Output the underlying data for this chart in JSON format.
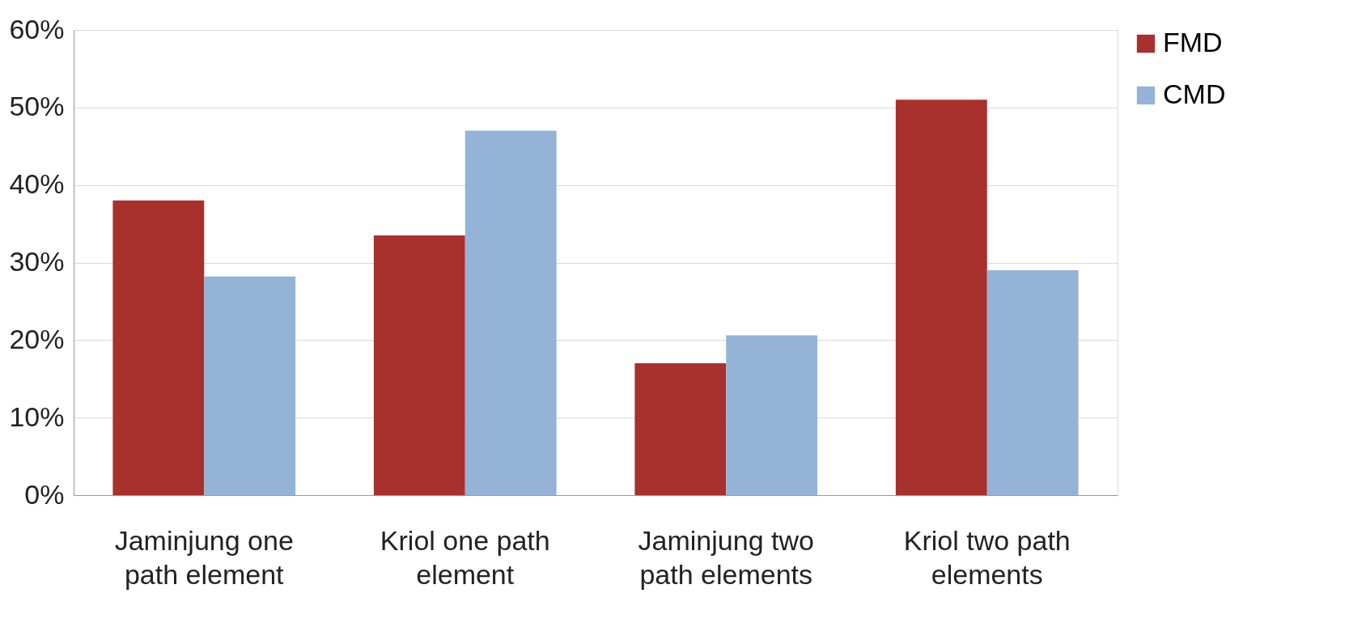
{
  "chart_data": {
    "type": "bar",
    "categories": [
      "Jaminjung one path element",
      "Kriol one path element",
      "Jaminjung two path elements",
      "Kriol two path elements"
    ],
    "series": [
      {
        "name": "FMD",
        "color": "#a8302d",
        "values": [
          38,
          33.5,
          17,
          51
        ]
      },
      {
        "name": "CMD",
        "color": "#95b3d7",
        "values": [
          28.2,
          47,
          20.6,
          29
        ]
      }
    ],
    "ylim": [
      0,
      60
    ],
    "yticks": [
      {
        "value": 0,
        "label": "0%"
      },
      {
        "value": 10,
        "label": "10%"
      },
      {
        "value": 20,
        "label": "20%"
      },
      {
        "value": 30,
        "label": "30%"
      },
      {
        "value": 40,
        "label": "40%"
      },
      {
        "value": 50,
        "label": "50%"
      },
      {
        "value": 60,
        "label": "60%"
      }
    ],
    "grid": "y",
    "legend": "right"
  }
}
